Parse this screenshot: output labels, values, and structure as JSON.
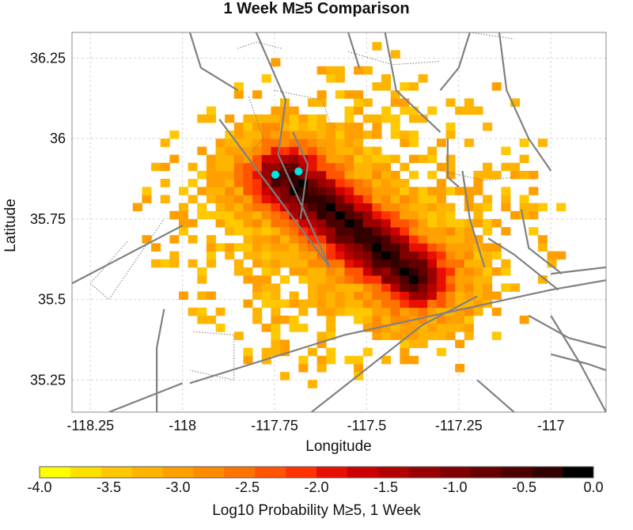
{
  "chart_data": {
    "type": "heatmap",
    "title": "1 Week M≥5 Comparison",
    "xlabel": "Longitude",
    "ylabel": "Latitude",
    "xlim": [
      -118.3,
      -116.85
    ],
    "ylim": [
      35.15,
      36.33
    ],
    "x_ticks": [
      {
        "value": -118.25,
        "label": "-118.25"
      },
      {
        "value": -118.0,
        "label": "-118"
      },
      {
        "value": -117.75,
        "label": "-117.75"
      },
      {
        "value": -117.5,
        "label": "-117.5"
      },
      {
        "value": -117.25,
        "label": "-117.25"
      },
      {
        "value": -117.0,
        "label": "-117"
      }
    ],
    "y_ticks": [
      {
        "value": 35.25,
        "label": "35.25"
      },
      {
        "value": 35.5,
        "label": "35.5"
      },
      {
        "value": 35.75,
        "label": "35.75"
      },
      {
        "value": 36.0,
        "label": "36"
      },
      {
        "value": 36.25,
        "label": "36.25"
      }
    ],
    "grid": true,
    "grid_style": "dashed-light-gray",
    "colorbar": {
      "label": "Log10 Probability M≥5, 1 Week",
      "min": -4.0,
      "max": 0.0,
      "ticks": [
        {
          "value": -4.0,
          "label": "-4.0"
        },
        {
          "value": -3.5,
          "label": "-3.5"
        },
        {
          "value": -3.0,
          "label": "-3.0"
        },
        {
          "value": -2.5,
          "label": "-2.5"
        },
        {
          "value": -2.0,
          "label": "-2.0"
        },
        {
          "value": -1.5,
          "label": "-1.5"
        },
        {
          "value": -1.0,
          "label": "-1.0"
        },
        {
          "value": -0.5,
          "label": "-0.5"
        },
        {
          "value": 0.0,
          "label": "0.0"
        }
      ],
      "colors": [
        "#ffff00",
        "#ffe100",
        "#ffc800",
        "#ffb400",
        "#ffa000",
        "#ff8c00",
        "#ff7300",
        "#ff5500",
        "#ff3300",
        "#e60f00",
        "#cc0000",
        "#b30000",
        "#990000",
        "#800000",
        "#660000",
        "#4d0000",
        "#330000",
        "#000000"
      ]
    },
    "cell_size_deg": 0.025,
    "ridge": {
      "start": [
        -117.72,
        35.88
      ],
      "end": [
        -117.37,
        35.57
      ]
    },
    "base_level": -3.2,
    "peak_level": -0.35,
    "events": [
      {
        "lon": -117.748,
        "lat": 35.888
      },
      {
        "lon": -117.685,
        "lat": 35.898
      }
    ],
    "event_color": "#00e5e5",
    "fault_lines": [
      [
        [
          -118.3,
          35.55
        ],
        [
          -118.0,
          35.73
        ]
      ],
      [
        [
          -117.98,
          35.24
        ],
        [
          -117.56,
          35.39
        ],
        [
          -117.0,
          35.53
        ],
        [
          -116.85,
          35.56
        ]
      ],
      [
        [
          -117.65,
          35.15
        ],
        [
          -117.35,
          35.42
        ],
        [
          -117.2,
          35.51
        ]
      ],
      [
        [
          -118.2,
          35.15
        ],
        [
          -118.0,
          35.24
        ]
      ],
      [
        [
          -117.7,
          36.02
        ],
        [
          -117.66,
          35.92
        ],
        [
          -117.68,
          35.75
        ]
      ],
      [
        [
          -117.8,
          36.33
        ],
        [
          -117.72,
          36.12
        ],
        [
          -117.74,
          35.95
        ],
        [
          -117.6,
          35.6
        ]
      ],
      [
        [
          -117.9,
          36.06
        ],
        [
          -117.73,
          35.8
        ],
        [
          -117.6,
          35.6
        ]
      ],
      [
        [
          -117.98,
          36.33
        ],
        [
          -117.95,
          36.22
        ],
        [
          -117.85,
          36.15
        ]
      ],
      [
        [
          -117.45,
          36.33
        ],
        [
          -117.42,
          36.15
        ],
        [
          -117.3,
          36.02
        ]
      ],
      [
        [
          -117.55,
          36.33
        ],
        [
          -117.52,
          36.22
        ]
      ],
      [
        [
          -117.24,
          35.9
        ],
        [
          -117.22,
          35.75
        ],
        [
          -117.18,
          35.6
        ]
      ],
      [
        [
          -117.28,
          36.0
        ],
        [
          -117.28,
          35.88
        ],
        [
          -117.25,
          35.85
        ]
      ],
      [
        [
          -117.08,
          35.78
        ],
        [
          -117.06,
          35.66
        ],
        [
          -116.97,
          35.58
        ]
      ],
      [
        [
          -117.17,
          35.69
        ],
        [
          -117.1,
          35.64
        ],
        [
          -116.98,
          35.53
        ]
      ],
      [
        [
          -117.14,
          36.33
        ],
        [
          -117.12,
          36.15
        ],
        [
          -117.06,
          36.0
        ],
        [
          -117.0,
          35.9
        ]
      ],
      [
        [
          -117.22,
          36.33
        ],
        [
          -117.25,
          36.22
        ],
        [
          -117.3,
          36.15
        ]
      ],
      [
        [
          -117.0,
          35.45
        ],
        [
          -116.92,
          35.3
        ],
        [
          -116.85,
          35.15
        ]
      ],
      [
        [
          -117.2,
          35.25
        ],
        [
          -117.1,
          35.15
        ]
      ],
      [
        [
          -118.05,
          35.47
        ],
        [
          -118.07,
          35.35
        ],
        [
          -118.07,
          35.15
        ]
      ],
      [
        [
          -117.0,
          35.33
        ],
        [
          -116.9,
          35.3
        ],
        [
          -116.85,
          35.28
        ]
      ],
      [
        [
          -117.06,
          35.45
        ],
        [
          -116.95,
          35.38
        ],
        [
          -116.85,
          35.35
        ]
      ],
      [
        [
          -117.0,
          35.58
        ],
        [
          -116.85,
          35.6
        ]
      ]
    ],
    "dotted_lines": [
      [
        [
          -118.15,
          35.68
        ],
        [
          -118.25,
          35.55
        ],
        [
          -118.2,
          35.5
        ],
        [
          -118.05,
          35.75
        ]
      ],
      [
        [
          -117.97,
          35.4
        ],
        [
          -117.86,
          35.39
        ],
        [
          -117.86,
          35.25
        ],
        [
          -117.98,
          35.28
        ]
      ],
      [
        [
          -117.85,
          36.28
        ],
        [
          -117.8,
          36.3
        ],
        [
          -117.73,
          36.28
        ]
      ],
      [
        [
          -117.75,
          36.15
        ],
        [
          -117.62,
          36.12
        ],
        [
          -117.6,
          36.05
        ]
      ],
      [
        [
          -117.3,
          35.9
        ],
        [
          -117.18,
          35.87
        ],
        [
          -117.1,
          35.88
        ]
      ],
      [
        [
          -117.55,
          36.27
        ],
        [
          -117.43,
          36.23
        ],
        [
          -117.3,
          36.24
        ]
      ],
      [
        [
          -117.22,
          36.33
        ],
        [
          -117.1,
          36.31
        ]
      ],
      [
        [
          -117.82,
          36.13
        ],
        [
          -117.78,
          36.0
        ],
        [
          -117.82,
          35.95
        ]
      ],
      [
        [
          -117.68,
          35.82
        ],
        [
          -117.66,
          35.75
        ]
      ]
    ]
  }
}
